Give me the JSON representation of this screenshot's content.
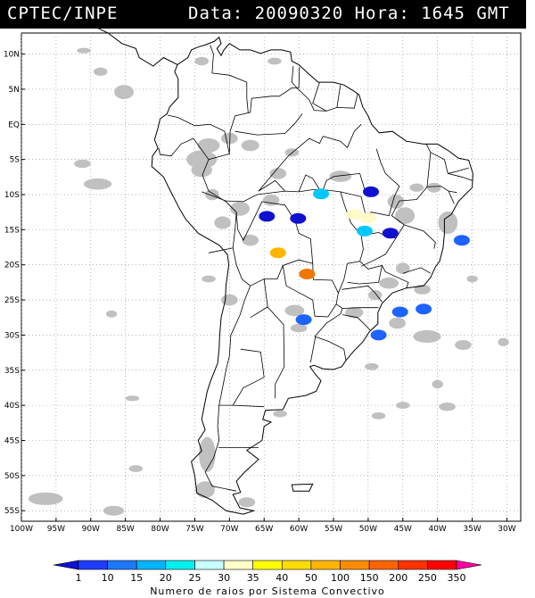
{
  "header": {
    "source": "CPTEC/INPE",
    "datetime": "Data: 20090320 Hora: 1645 GMT"
  },
  "map": {
    "lat_labels": [
      "10N",
      "5N",
      "EQ",
      "5S",
      "10S",
      "15S",
      "20S",
      "25S",
      "30S",
      "35S",
      "40S",
      "45S",
      "50S",
      "55S"
    ],
    "lat_values": [
      10,
      5,
      0,
      -5,
      -10,
      -15,
      -20,
      -25,
      -30,
      -35,
      -40,
      -45,
      -50,
      -55
    ],
    "lon_labels": [
      "100W",
      "95W",
      "90W",
      "85W",
      "80W",
      "75W",
      "70W",
      "65W",
      "60W",
      "55W",
      "50W",
      "45W",
      "40W",
      "35W",
      "30W"
    ],
    "lon_values": [
      -100,
      -95,
      -90,
      -85,
      -80,
      -75,
      -70,
      -65,
      -60,
      -55,
      -50,
      -45,
      -40,
      -35,
      -30
    ],
    "lon_range": [
      -100,
      -28
    ],
    "lat_range": [
      -56.5,
      13
    ],
    "cloud_color": "#c0c0c0",
    "convective_systems": [
      {
        "lon": -36.5,
        "lat": -16.5,
        "color": "#1e63ff"
      },
      {
        "lon": -63.0,
        "lat": -18.3,
        "color": "#ffb400"
      },
      {
        "lon": -58.8,
        "lat": -21.3,
        "color": "#f07800"
      },
      {
        "lon": -64.6,
        "lat": -13.1,
        "color": "#1010d0"
      },
      {
        "lon": -60.1,
        "lat": -13.4,
        "color": "#1010d0"
      },
      {
        "lon": -56.8,
        "lat": -9.9,
        "color": "#00c8ff"
      },
      {
        "lon": -49.6,
        "lat": -9.6,
        "color": "#1010d0"
      },
      {
        "lon": -52.0,
        "lat": -12.8,
        "color": "#fffac8"
      },
      {
        "lon": -50.0,
        "lat": -13.3,
        "color": "#fffac8"
      },
      {
        "lon": -50.5,
        "lat": -15.2,
        "color": "#00c8ff"
      },
      {
        "lon": -46.8,
        "lat": -15.5,
        "color": "#1010d0"
      },
      {
        "lon": -45.4,
        "lat": -26.7,
        "color": "#1e63ff"
      },
      {
        "lon": -42.0,
        "lat": -26.3,
        "color": "#1e63ff"
      },
      {
        "lon": -59.3,
        "lat": -27.8,
        "color": "#1e63ff"
      },
      {
        "lon": -48.5,
        "lat": -30.0,
        "color": "#1e63ff"
      }
    ]
  },
  "colorbar": {
    "tick_labels": [
      "1",
      "10",
      "15",
      "20",
      "25",
      "30",
      "35",
      "40",
      "50",
      "100",
      "150",
      "200",
      "250",
      "350"
    ],
    "colors": [
      "#1010d0",
      "#1e3cff",
      "#1e78ff",
      "#00b4ff",
      "#00f0f0",
      "#c8ffff",
      "#ffffc8",
      "#ffff00",
      "#ffdc00",
      "#ffb400",
      "#ff8c00",
      "#ff6400",
      "#ff3200",
      "#ff0000",
      "#ff00a0"
    ],
    "caption": "Numero de raios por Sistema Convectivo"
  }
}
